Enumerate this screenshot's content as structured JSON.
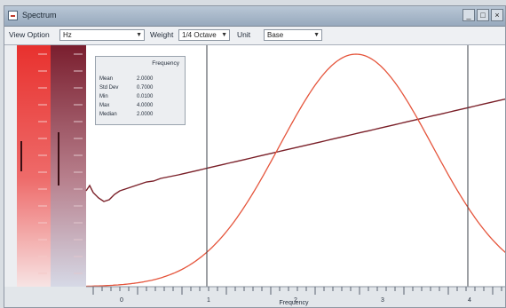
{
  "window": {
    "title": "Spectrum",
    "controls": [
      "_",
      "□",
      "×"
    ]
  },
  "toolbar": {
    "view_label": "View Option",
    "view_value": "Hz",
    "weight_label": "Weight",
    "weight_value": "1/4 Octave",
    "unit_label": "Unit",
    "unit_value": "Base"
  },
  "legend": {
    "header": "Frequency",
    "rows": [
      {
        "label": "Mean",
        "value": "2.0000"
      },
      {
        "label": "Std Dev",
        "value": "0.7000"
      },
      {
        "label": "Min",
        "value": "0.0100"
      },
      {
        "label": "Max",
        "value": "4.0000"
      },
      {
        "label": "Median",
        "value": "2.0000"
      }
    ]
  },
  "xaxis": {
    "label": "Frequency",
    "ticks": [
      "0",
      "1",
      "2",
      "3",
      "4"
    ]
  },
  "colors": {
    "gaussian": "#e5553c",
    "trend": "#7a1f28",
    "cursor": "#3b4048",
    "bar_red_top": "#e8312e",
    "bar_red_bottom": "#f7e3e3",
    "bar_dark_top": "#7a1e2e",
    "bar_dark_bottom": "#d6d9e6"
  }
}
